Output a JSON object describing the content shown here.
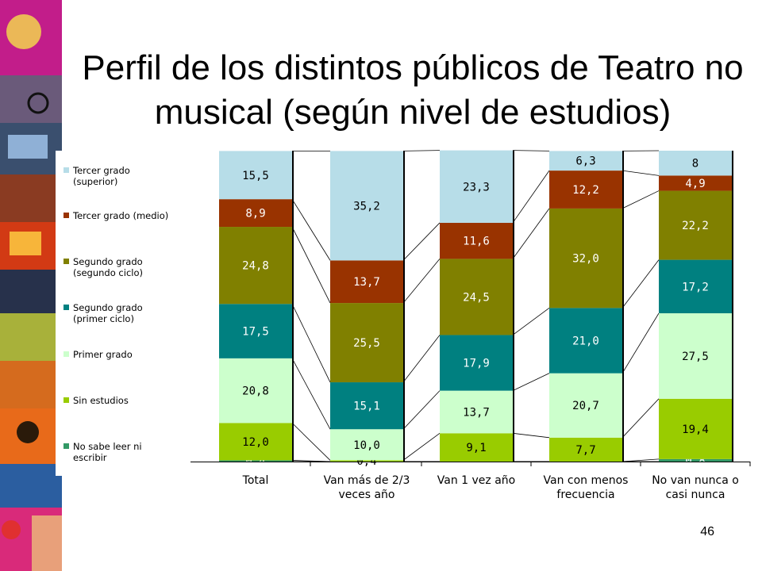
{
  "title": "Perfil de los distintos públicos de Teatro no musical (según nivel de estudios)",
  "page_number": "46",
  "icons": [
    "photo-collage-strip"
  ],
  "chart_data": {
    "type": "bar",
    "stacked": true,
    "normalized_percent": true,
    "categories": [
      "Total",
      "Van más de 2/3 veces año",
      "Van 1 vez año",
      "Van con menos frecuencia",
      "No van nunca o casi nunca"
    ],
    "series": [
      {
        "name": "No sabe leer ni escribir",
        "color": "#339966",
        "values": [
          0.4,
          0.0,
          0.0,
          0.0,
          0.8
        ],
        "labels": [
          "0,4",
          "",
          "",
          "",
          "0,8"
        ]
      },
      {
        "name": "Sin estudios",
        "color": "#99cc00",
        "values": [
          12.0,
          0.4,
          9.1,
          7.7,
          19.4
        ],
        "labels": [
          "12,0",
          "0,4",
          "9,1",
          "7,7",
          "19,4"
        ]
      },
      {
        "name": "Primer grado",
        "color": "#ccffcc",
        "values": [
          20.8,
          10.0,
          13.7,
          20.7,
          27.5
        ],
        "labels": [
          "20,8",
          "10,0",
          "13,7",
          "20,7",
          "27,5"
        ]
      },
      {
        "name": "Segundo grado (primer ciclo)",
        "color": "#008080",
        "values": [
          17.5,
          15.1,
          17.9,
          21.0,
          17.2
        ],
        "labels": [
          "17,5",
          "15,1",
          "17,9",
          "21,0",
          "17,2"
        ]
      },
      {
        "name": "Segundo grado (segundo ciclo)",
        "color": "#808000",
        "values": [
          24.8,
          25.5,
          24.5,
          32.0,
          22.2
        ],
        "labels": [
          "24,8",
          "25,5",
          "24,5",
          "32,0",
          "22,2"
        ]
      },
      {
        "name": "Tercer grado (medio)",
        "color": "#993300",
        "values": [
          8.9,
          13.7,
          11.6,
          12.2,
          4.9
        ],
        "labels": [
          "8,9",
          "13,7",
          "11,6",
          "12,2",
          "4,9"
        ]
      },
      {
        "name": "Tercer grado (superior)",
        "color": "#b7dde8",
        "values": [
          15.5,
          35.2,
          23.3,
          6.3,
          8.0
        ],
        "labels": [
          "15,5",
          "35,2",
          "23,3",
          "6,3",
          "8"
        ]
      }
    ],
    "legend_entries": [
      {
        "label": "Tercer grado\n(superior)",
        "color": "#b7dde8"
      },
      {
        "label": "Tercer grado (medio)",
        "color": "#993300"
      },
      {
        "label": "Segundo grado\n(segundo ciclo)",
        "color": "#808000"
      },
      {
        "label": "Segundo grado\n(primer ciclo)",
        "color": "#008080"
      },
      {
        "label": "Primer grado",
        "color": "#ccffcc"
      },
      {
        "label": "Sin estudios",
        "color": "#99cc00"
      },
      {
        "label": "No sabe leer ni\nescribir",
        "color": "#339966"
      }
    ],
    "x_tick_labels": [
      [
        "Total"
      ],
      [
        "Van más de 2/3",
        "veces año"
      ],
      [
        "Van 1 vez año"
      ],
      [
        "Van con menos",
        "frecuencia"
      ],
      [
        "No van nunca o",
        "casi nunca"
      ]
    ],
    "legend_position": "left",
    "grid": false,
    "ylim": [
      0,
      100
    ]
  }
}
